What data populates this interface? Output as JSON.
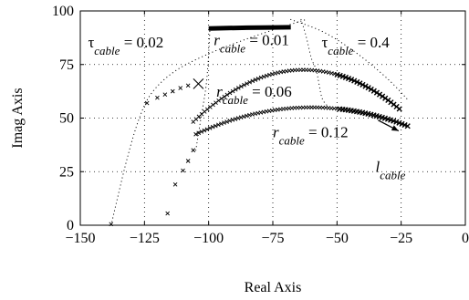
{
  "chart_data": {
    "type": "scatter",
    "title": "",
    "xlabel": "Real Axis",
    "ylabel": "Imag Axis",
    "xlim": [
      -150,
      0
    ],
    "ylim": [
      0,
      100
    ],
    "xticks": [
      -150,
      -125,
      -100,
      -75,
      -50,
      -25,
      0
    ],
    "yticks": [
      0,
      25,
      50,
      75,
      100
    ],
    "xtick_labels": [
      "−150",
      "−125",
      "−100",
      "−75",
      "−50",
      "−25",
      "0"
    ],
    "ytick_labels": [
      "0",
      "25",
      "50",
      "75",
      "100"
    ],
    "grid": true,
    "annotations": [
      {
        "symbol": "τ",
        "sub": "cable",
        "text": " = 0.02",
        "x": -147,
        "y": 83
      },
      {
        "symbol": "r",
        "sub": "cable",
        "text": " = 0.01",
        "x": -98,
        "y": 84
      },
      {
        "symbol": "τ",
        "sub": "cable",
        "text": " = 0.4",
        "x": -56,
        "y": 83
      },
      {
        "symbol": "r",
        "sub": "cable",
        "text": " = 0.06",
        "x": -97,
        "y": 60
      },
      {
        "symbol": "r",
        "sub": "cable",
        "text": " = 0.12",
        "x": -75,
        "y": 41
      },
      {
        "symbol": "l",
        "sub": "cable",
        "text": "",
        "x": -35,
        "y": 25
      }
    ],
    "series": [
      {
        "marker": "x",
        "sparse_points": [
          [
            -138,
            0.5
          ],
          [
            -116,
            5.5
          ],
          [
            -113,
            19
          ],
          [
            -110,
            25.5
          ],
          [
            -108,
            30
          ],
          [
            -106,
            35
          ]
        ],
        "dense_start": -105,
        "dense_end": -22,
        "dense_vertex": [
          -60,
          55
        ],
        "dense_a": -0.0062
      },
      {
        "marker": "x",
        "sparse_points": [
          [
            -124,
            57
          ],
          [
            -120,
            59.5
          ],
          [
            -117,
            61
          ],
          [
            -114,
            62.5
          ],
          [
            -111,
            64
          ],
          [
            -108,
            65.2
          ]
        ],
        "dense_start": -106,
        "dense_end": -25,
        "dense_vertex": [
          -63,
          72.5
        ],
        "dense_a": -0.0131
      },
      {
        "marker": "line",
        "points": [
          [
            -100,
            91.8
          ],
          [
            -85,
            92.2
          ],
          [
            -75,
            92.3
          ],
          [
            -68,
            92.4
          ]
        ]
      }
    ],
    "constant_lines": [
      {
        "kind": "tau",
        "points": [
          [
            -138,
            0
          ],
          [
            -132,
            30
          ],
          [
            -127,
            50
          ],
          [
            -122,
            62
          ],
          [
            -113,
            72
          ],
          [
            -100,
            80
          ],
          [
            -85,
            87
          ],
          [
            -70,
            93
          ],
          [
            -62,
            96
          ]
        ]
      },
      {
        "kind": "r",
        "points": [
          [
            -105,
            35
          ],
          [
            -103,
            50
          ],
          [
            -101,
            65
          ],
          [
            -100,
            80
          ],
          [
            -99.5,
            92
          ]
        ]
      },
      {
        "kind": "r",
        "points": [
          [
            -64,
            96
          ],
          [
            -62,
            88
          ],
          [
            -60,
            78
          ],
          [
            -58,
            72
          ],
          [
            -56,
            60
          ],
          [
            -54,
            56
          ]
        ]
      },
      {
        "kind": "tau",
        "points": [
          [
            -68,
            96
          ],
          [
            -55,
            90
          ],
          [
            -42,
            80
          ],
          [
            -30,
            68
          ],
          [
            -22,
            58
          ]
        ]
      }
    ],
    "crossing_point": [
      -104,
      66
    ],
    "arrow": {
      "from": [
        -34,
        49
      ],
      "to": [
        -26,
        44
      ]
    }
  }
}
